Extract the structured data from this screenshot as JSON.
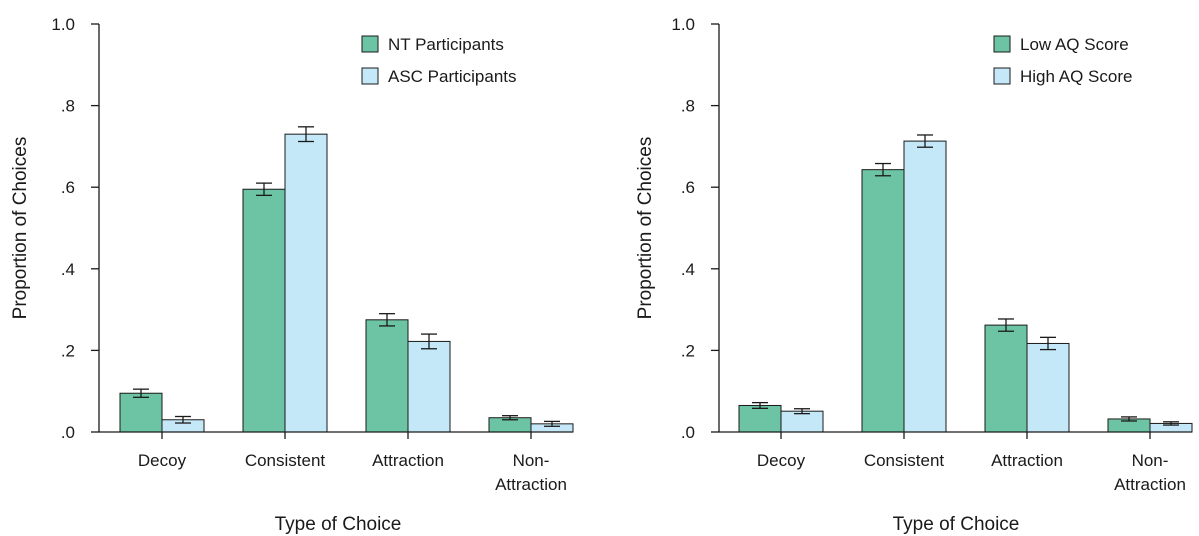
{
  "chart_data": [
    {
      "type": "bar",
      "title": "",
      "xlabel": "Type of Choice",
      "ylabel": "Proportion of Choices",
      "ylim": [
        0,
        1
      ],
      "yticks": [
        0,
        0.2,
        0.4,
        0.6,
        0.8,
        1.0
      ],
      "yticklabels": [
        ".0",
        ".2",
        ".4",
        ".6",
        ".8",
        "1.0"
      ],
      "categories": [
        [
          "Decoy"
        ],
        [
          "Consistent"
        ],
        [
          "Attraction"
        ],
        [
          "Non-",
          "Attraction"
        ]
      ],
      "series": [
        {
          "name": "NT Participants",
          "color": "#6cc4a4",
          "values": [
            0.095,
            0.595,
            0.275,
            0.035
          ],
          "errors": [
            0.01,
            0.015,
            0.015,
            0.005
          ]
        },
        {
          "name": "ASC Participants",
          "color": "#c4e8f8",
          "values": [
            0.03,
            0.73,
            0.222,
            0.02
          ],
          "errors": [
            0.008,
            0.018,
            0.018,
            0.006
          ]
        }
      ],
      "legend": "top-right",
      "grid": false,
      "error_bars": true
    },
    {
      "type": "bar",
      "title": "",
      "xlabel": "Type of Choice",
      "ylabel": "Proportion of Choices",
      "ylim": [
        0,
        1
      ],
      "yticks": [
        0,
        0.2,
        0.4,
        0.6,
        0.8,
        1.0
      ],
      "yticklabels": [
        ".0",
        ".2",
        ".4",
        ".6",
        ".8",
        "1.0"
      ],
      "categories": [
        [
          "Decoy"
        ],
        [
          "Consistent"
        ],
        [
          "Attraction"
        ],
        [
          "Non-",
          "Attraction"
        ]
      ],
      "series": [
        {
          "name": "Low AQ Score",
          "color": "#6cc4a4",
          "values": [
            0.065,
            0.643,
            0.262,
            0.032
          ],
          "errors": [
            0.007,
            0.015,
            0.015,
            0.005
          ]
        },
        {
          "name": "High AQ Score",
          "color": "#c4e8f8",
          "values": [
            0.051,
            0.713,
            0.217,
            0.021
          ],
          "errors": [
            0.006,
            0.015,
            0.015,
            0.004
          ]
        }
      ],
      "legend": "top-right",
      "grid": false,
      "error_bars": true
    }
  ]
}
